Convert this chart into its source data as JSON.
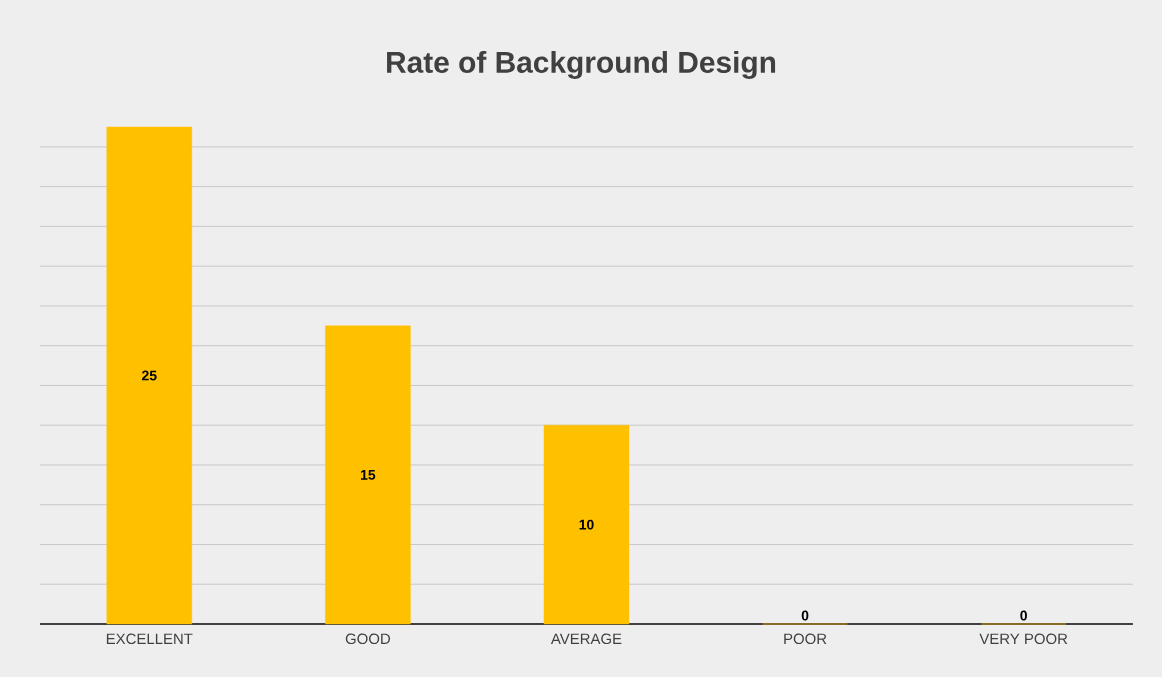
{
  "chart_data": {
    "type": "bar",
    "title": "Rate of Background Design",
    "categories": [
      "EXCELLENT",
      "GOOD",
      "AVERAGE",
      "POOR",
      "VERY POOR"
    ],
    "values": [
      25,
      15,
      10,
      0,
      0
    ],
    "color": "#ffc000",
    "data_labels": true,
    "grid": "y",
    "tick_labels": "x"
  }
}
